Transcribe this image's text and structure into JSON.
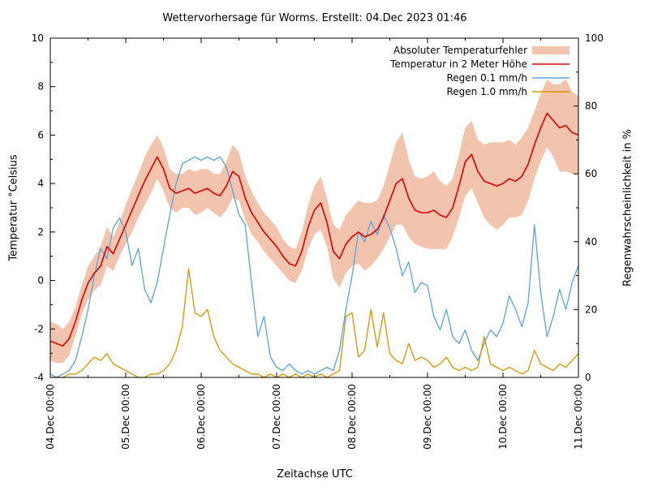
{
  "header": {
    "title": "Wettervorhersage für Worms. Erstellt: 04.Dec 2023 01:46"
  },
  "axes": {
    "x": {
      "label": "Zeitachse UTC",
      "tick_labels": [
        "04.Dec 00:00",
        "05.Dec 00:00",
        "06.Dec 00:00",
        "07.Dec 00:00",
        "08.Dec 00:00",
        "09.Dec 00:00",
        "10.Dec 00:00",
        "11.Dec 00:00"
      ],
      "major_tick_hours": 24,
      "minor_tick_hours": 12
    },
    "y_left": {
      "label": "Temperatur °Celsius",
      "tick_values": [
        -4,
        -2,
        0,
        2,
        4,
        6,
        8,
        10
      ],
      "minor_step": 1
    },
    "y_right": {
      "label": "Regenwahrscheinlichkeit in %",
      "tick_values": [
        0,
        20,
        40,
        60,
        80,
        100
      ],
      "minor_step": 10
    }
  },
  "legend": {
    "items": [
      {
        "label": "Absoluter Temperaturfehler",
        "type": "band",
        "color": "#f2c3ad"
      },
      {
        "label": "Temperatur in 2 Meter Höhe",
        "type": "line",
        "color": "#dd0000"
      },
      {
        "label": "Regen 0.1 mm/h",
        "type": "line",
        "color": "#5ba3d9"
      },
      {
        "label": "Regen 1.0 mm/h",
        "type": "line",
        "color": "#d69500"
      }
    ]
  },
  "chart_data": {
    "type": "line",
    "title": "Wettervorhersage für Worms. Erstellt: 04.Dec 2023 01:46",
    "xlabel": "Zeitachse UTC",
    "ylabel_left": "Temperatur °Celsius",
    "ylabel_right": "Regenwahrscheinlichkeit in %",
    "ylim_left": [
      -4,
      10
    ],
    "ylim_right": [
      0,
      100
    ],
    "x_start_hour": 0,
    "x_step_hours": 2,
    "x_end_hour": 168,
    "x_tick_labels": [
      "04.Dec 00:00",
      "05.Dec 00:00",
      "06.Dec 00:00",
      "07.Dec 00:00",
      "08.Dec 00:00",
      "09.Dec 00:00",
      "10.Dec 00:00",
      "11.Dec 00:00"
    ],
    "series": [
      {
        "name": "Absoluter Temperaturfehler",
        "type": "band",
        "axis": "left",
        "color": "#f2c3ad",
        "center_series": "Temperatur in 2 Meter Höhe",
        "half_width": [
          0.8,
          0.8,
          0.7,
          0.7,
          0.6,
          0.6,
          0.7,
          0.7,
          0.8,
          0.8,
          0.7,
          0.7,
          0.8,
          0.9,
          0.9,
          1.0,
          1.0,
          0.9,
          0.9,
          0.8,
          0.8,
          0.7,
          0.8,
          0.9,
          0.9,
          0.8,
          0.8,
          0.9,
          1.0,
          1.1,
          1.0,
          0.9,
          0.9,
          0.8,
          0.8,
          0.8,
          0.8,
          0.7,
          0.7,
          0.7,
          0.8,
          0.9,
          1.0,
          1.1,
          1.0,
          1.1,
          1.2,
          1.2,
          1.2,
          1.3,
          1.4,
          1.3,
          1.2,
          1.3,
          1.5,
          1.7,
          1.9,
          1.6,
          1.4,
          1.4,
          1.5,
          1.6,
          1.4,
          1.3,
          1.2,
          1.3,
          1.4,
          1.4,
          1.3,
          1.5,
          1.7,
          1.8,
          1.7,
          1.6,
          1.5,
          1.6,
          1.5,
          1.4,
          1.4,
          1.4,
          1.5,
          1.8,
          1.9,
          1.7,
          1.6
        ]
      },
      {
        "name": "Temperatur in 2 Meter Höhe",
        "type": "line",
        "axis": "left",
        "color": "#dd0000",
        "values": [
          -2.5,
          -2.6,
          -2.7,
          -2.4,
          -1.7,
          -0.8,
          -0.1,
          0.3,
          0.6,
          1.4,
          1.1,
          1.7,
          2.3,
          2.9,
          3.5,
          4.1,
          4.6,
          5.1,
          4.6,
          3.8,
          3.6,
          3.7,
          3.8,
          3.6,
          3.7,
          3.8,
          3.6,
          3.5,
          3.9,
          4.5,
          4.3,
          3.4,
          2.8,
          2.4,
          2.0,
          1.7,
          1.4,
          1.0,
          0.7,
          0.6,
          1.2,
          2.2,
          2.9,
          3.2,
          2.4,
          1.2,
          0.9,
          1.5,
          1.8,
          2.0,
          1.8,
          1.9,
          2.1,
          2.6,
          3.3,
          4.0,
          4.2,
          3.4,
          2.9,
          2.8,
          2.8,
          2.9,
          2.7,
          2.6,
          3.0,
          3.9,
          4.9,
          5.2,
          4.5,
          4.1,
          4.0,
          3.9,
          4.0,
          4.2,
          4.1,
          4.3,
          4.8,
          5.6,
          6.3,
          6.9,
          6.6,
          6.3,
          6.4,
          6.1,
          6.0
        ]
      },
      {
        "name": "Regen 0.1 mm/h",
        "type": "line",
        "axis": "right",
        "color": "#5ba3d9",
        "values": [
          1,
          0,
          1,
          2,
          5,
          12,
          20,
          30,
          38,
          35,
          44,
          47,
          43,
          33,
          38,
          26,
          22,
          28,
          38,
          48,
          57,
          63,
          64,
          65,
          64,
          65,
          64,
          65,
          62,
          55,
          48,
          45,
          28,
          12,
          18,
          6,
          3,
          2,
          4,
          2,
          1,
          2,
          1,
          2,
          3,
          2,
          8,
          20,
          30,
          43,
          40,
          46,
          42,
          48,
          44,
          38,
          30,
          34,
          25,
          28,
          27,
          18,
          14,
          20,
          12,
          10,
          14,
          8,
          5,
          10,
          14,
          12,
          16,
          24,
          20,
          15,
          22,
          45,
          25,
          12,
          18,
          26,
          20,
          28,
          33
        ]
      },
      {
        "name": "Regen 1.0 mm/h",
        "type": "line",
        "axis": "right",
        "color": "#d69500",
        "values": [
          0,
          0,
          0,
          1,
          1,
          2,
          4,
          6,
          5,
          7,
          4,
          3,
          2,
          1,
          0,
          0,
          1,
          1,
          2,
          4,
          8,
          15,
          32,
          19,
          18,
          20,
          12,
          8,
          6,
          4,
          3,
          2,
          1,
          1,
          0,
          1,
          0,
          1,
          0,
          1,
          0,
          1,
          0,
          1,
          0,
          1,
          2,
          18,
          19,
          6,
          8,
          20,
          9,
          19,
          7,
          5,
          4,
          10,
          5,
          6,
          5,
          3,
          4,
          6,
          3,
          2,
          3,
          2,
          3,
          12,
          4,
          3,
          2,
          3,
          2,
          1,
          2,
          8,
          4,
          3,
          2,
          4,
          3,
          5,
          7
        ]
      }
    ]
  }
}
